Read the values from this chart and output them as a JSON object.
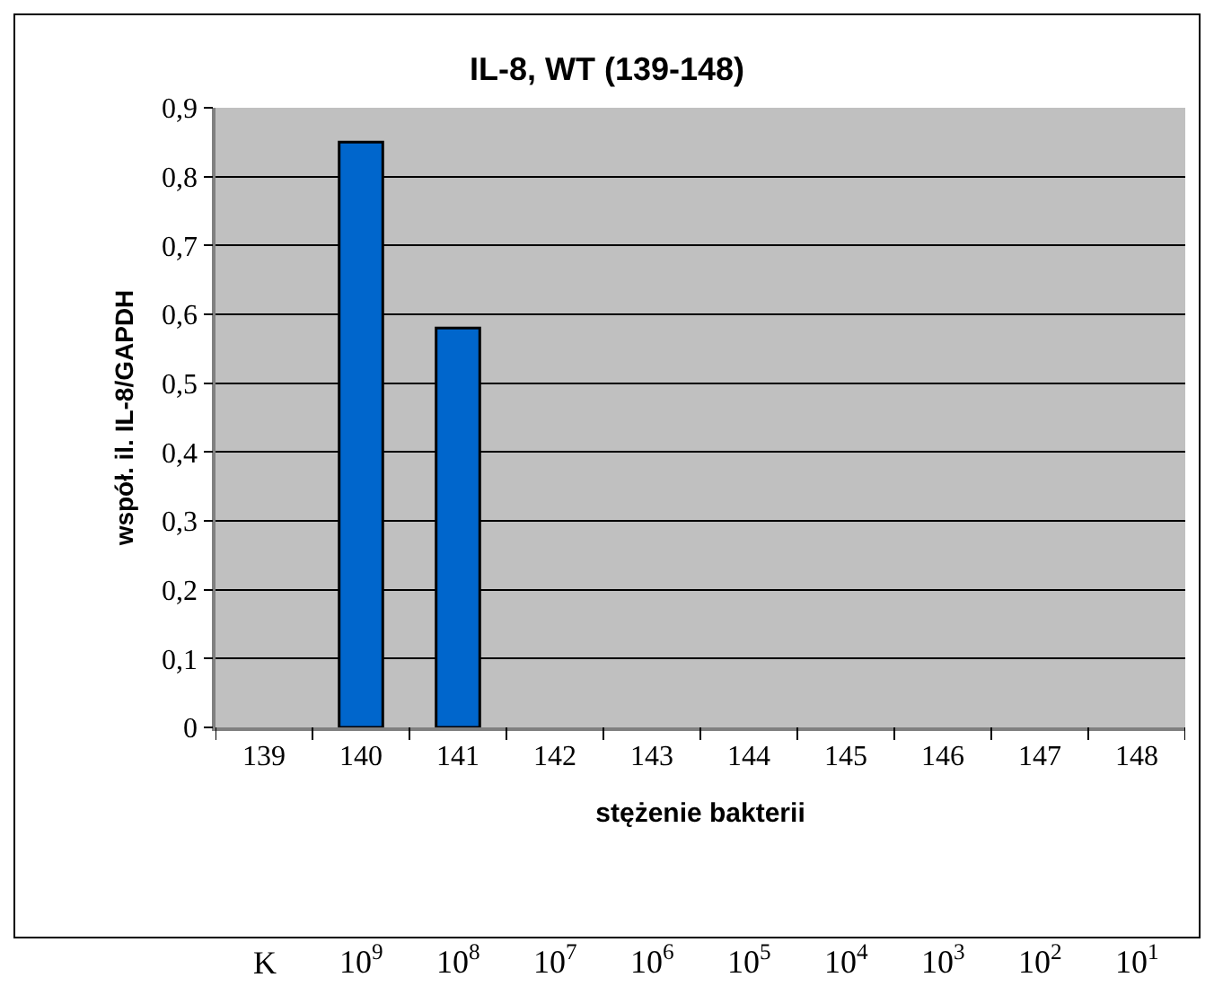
{
  "chart_data": {
    "type": "bar",
    "title": "IL-8, WT (139-148)",
    "xlabel": "stężenie bakterii",
    "ylabel": "współ. il. IL-8/GAPDH",
    "categories": [
      "139",
      "140",
      "141",
      "142",
      "143",
      "144",
      "145",
      "146",
      "147",
      "148"
    ],
    "series": [
      {
        "color": "#0066cc",
        "values": [
          null,
          0.85,
          0.58,
          null,
          null,
          null,
          null,
          null,
          null,
          null
        ]
      }
    ],
    "ylim": [
      0,
      0.9
    ],
    "yticks": [
      0,
      {
        "value": 0.1,
        "label": "0,1"
      },
      {
        "value": 0.2,
        "label": "0,2"
      },
      {
        "value": 0.3,
        "label": "0,3"
      },
      {
        "value": 0.4,
        "label": "0,4"
      },
      {
        "value": 0.5,
        "label": "0,5"
      },
      {
        "value": 0.6,
        "label": "0,6"
      },
      {
        "value": 0.7,
        "label": "0,7"
      },
      {
        "value": 0.8,
        "label": "0,8"
      },
      {
        "value": 0.9,
        "label": "0,9"
      }
    ],
    "grid": "y",
    "annotations": [
      "K",
      "10$^{9}$",
      "10$^{8}$",
      "10$^{7}$",
      "10$^{6}$",
      "10$^{5}$",
      "10$^{4}$",
      "10$^{3}$",
      "10$^{2}$",
      "10$^{1}$"
    ]
  }
}
